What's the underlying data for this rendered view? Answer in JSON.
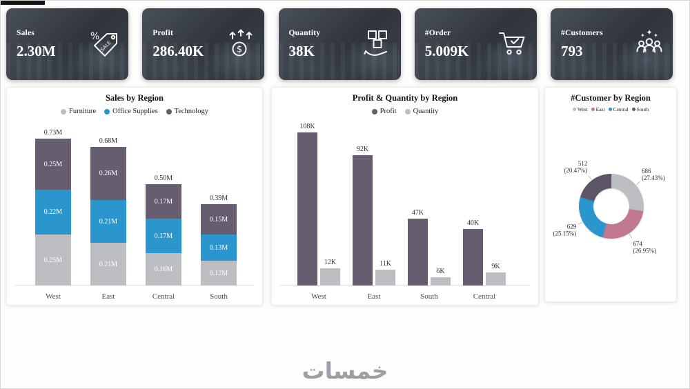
{
  "watermark": "خمسات",
  "kpis": [
    {
      "label": "Sales",
      "value": "2.30M",
      "icon": "sale-tag-icon"
    },
    {
      "label": "Profit",
      "value": "286.40K",
      "icon": "profit-growth-icon"
    },
    {
      "label": "Quantity",
      "value": "38K",
      "icon": "quantity-boxes-icon"
    },
    {
      "label": "#Order",
      "value": "5.009K",
      "icon": "order-cart-icon"
    },
    {
      "label": "#Customers",
      "value": "793",
      "icon": "customers-icon"
    }
  ],
  "chart_data": [
    {
      "type": "bar",
      "subtype": "stacked-column",
      "title": "Sales by Region",
      "categories": [
        "West",
        "East",
        "Central",
        "South"
      ],
      "series": [
        {
          "name": "Furniture",
          "color": "#bcbec2",
          "values": [
            0.25,
            0.21,
            0.16,
            0.12
          ],
          "labels": [
            "0.25M",
            "0.21M",
            "0.16M",
            "0.12M"
          ]
        },
        {
          "name": "Office Supplies",
          "color": "#2a96cd",
          "values": [
            0.22,
            0.21,
            0.17,
            0.13
          ],
          "labels": [
            "0.22M",
            "0.21M",
            "0.17M",
            "0.13M"
          ]
        },
        {
          "name": "Technology",
          "color": "#665d70",
          "values": [
            0.25,
            0.26,
            0.17,
            0.15
          ],
          "labels": [
            "0.25M",
            "0.26M",
            "0.17M",
            "0.15M"
          ]
        }
      ],
      "totals": [
        {
          "label": "0.73M",
          "value": 0.73
        },
        {
          "label": "0.68M",
          "value": 0.68
        },
        {
          "label": "0.50M",
          "value": 0.5
        },
        {
          "label": "0.39M",
          "value": 0.39
        }
      ],
      "unit": "M",
      "legend_position": "top",
      "grid": false
    },
    {
      "type": "bar",
      "subtype": "clustered-column",
      "title": "Profit & Quantity by Region",
      "categories": [
        "West",
        "East",
        "South",
        "Central"
      ],
      "series": [
        {
          "name": "Profit",
          "color": "#665d70",
          "values": [
            108,
            92,
            47,
            40
          ],
          "labels": [
            "108K",
            "92K",
            "47K",
            "40K"
          ]
        },
        {
          "name": "Quantity",
          "color": "#bcbec2",
          "values": [
            12,
            11,
            6,
            9
          ],
          "labels": [
            "12K",
            "11K",
            "6K",
            "9K"
          ]
        }
      ],
      "unit": "K",
      "ymax": 108,
      "legend_position": "top",
      "grid": false
    },
    {
      "type": "pie",
      "subtype": "donut",
      "title": "#Customer by Region",
      "slices": [
        {
          "name": "West",
          "value": "686",
          "pct": 27.43,
          "pct_label": "(27.43%)",
          "color": "#bcbec2"
        },
        {
          "name": "East",
          "value": "674",
          "pct": 26.95,
          "pct_label": "(26.95%)",
          "color": "#c0798e"
        },
        {
          "name": "Central",
          "value": "629",
          "pct": 25.15,
          "pct_label": "(25.15%)",
          "color": "#2a96cd"
        },
        {
          "name": "South",
          "value": "512",
          "pct": 20.47,
          "pct_label": "(20.47%)",
          "color": "#5d5566"
        }
      ],
      "legend_position": "top"
    }
  ]
}
